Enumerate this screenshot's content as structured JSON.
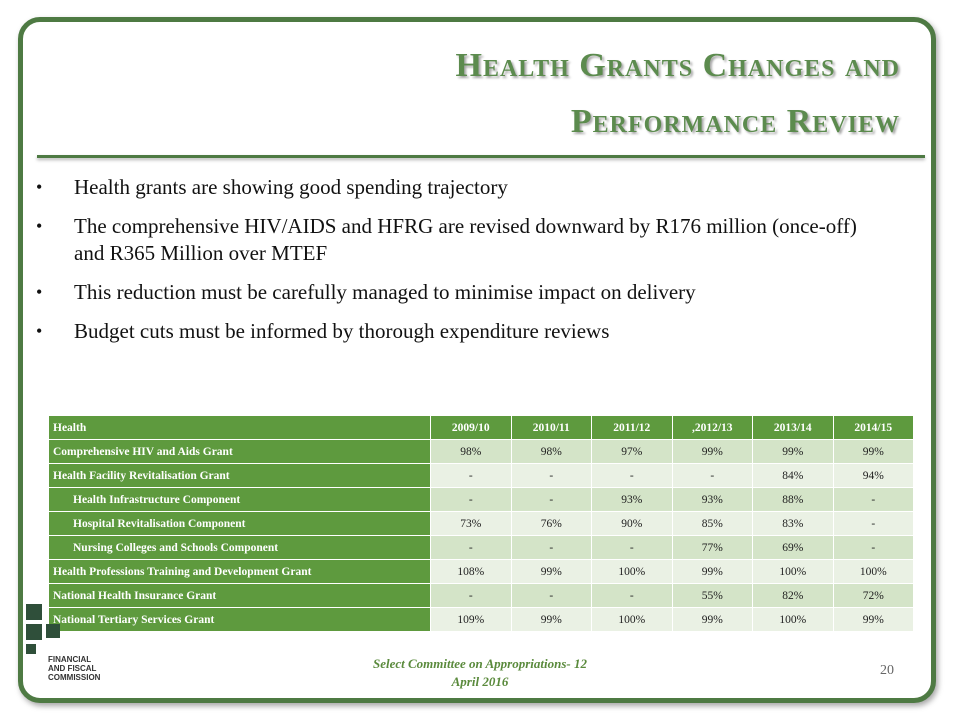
{
  "slide": {
    "title_line1": "Health Grants Changes and",
    "title_line2": "Performance Review",
    "bullets": [
      "Health grants are showing good spending trajectory",
      "The comprehensive HIV/AIDS and HFRG are revised downward by R176 million (once-off) and R365 Million over MTEF",
      "This reduction must be carefully managed to minimise impact on delivery",
      "Budget cuts must be informed by thorough expenditure reviews"
    ],
    "footer_line1": "Select Committee on Appropriations- 12",
    "footer_line2": "April 2016",
    "page_number": "20"
  },
  "logo": {
    "line1": "FINANCIAL",
    "line2": "AND FISCAL",
    "line3": "COMMISSION"
  },
  "colors": {
    "frame": "#4e7a43",
    "title": "#5c8b4e",
    "table_header": "#5e9a3e",
    "row_odd": "#d4e4c8",
    "row_even": "#eaf1e4"
  },
  "table": {
    "headers": [
      "Health",
      "2009/10",
      "2010/11",
      "2011/12",
      ",2012/13",
      "2013/14",
      "2014/15"
    ],
    "rows": [
      {
        "label": "Comprehensive HIV and Aids Grant",
        "indent": false,
        "values": [
          "98%",
          "98%",
          "97%",
          "99%",
          "99%",
          "99%"
        ]
      },
      {
        "label": "Health Facility Revitalisation Grant",
        "indent": false,
        "values": [
          "-",
          "-",
          "-",
          "-",
          "84%",
          "94%"
        ]
      },
      {
        "label": "Health Infrastructure Component",
        "indent": true,
        "values": [
          "-",
          "-",
          "93%",
          "93%",
          "88%",
          "-"
        ]
      },
      {
        "label": "Hospital Revitalisation Component",
        "indent": true,
        "values": [
          "73%",
          "76%",
          "90%",
          "85%",
          "83%",
          "-"
        ]
      },
      {
        "label": "Nursing Colleges and Schools Component",
        "indent": true,
        "values": [
          "-",
          "-",
          "-",
          "77%",
          "69%",
          "-"
        ]
      },
      {
        "label": "Health Professions Training and Development Grant",
        "indent": false,
        "values": [
          "108%",
          "99%",
          "100%",
          "99%",
          "100%",
          "100%"
        ]
      },
      {
        "label": "National Health Insurance Grant",
        "indent": false,
        "values": [
          "-",
          "-",
          "-",
          "55%",
          "82%",
          "72%"
        ]
      },
      {
        "label": "National Tertiary Services Grant",
        "indent": false,
        "values": [
          "109%",
          "99%",
          "100%",
          "99%",
          "100%",
          "99%"
        ]
      }
    ]
  }
}
